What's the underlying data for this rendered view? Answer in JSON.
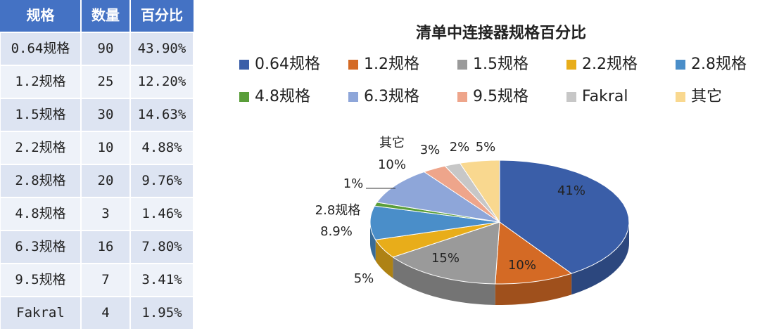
{
  "table": {
    "header": [
      "规格",
      "数量",
      "百分比"
    ],
    "rows": [
      [
        "0.64规格",
        "90",
        "43.90%"
      ],
      [
        "1.2规格",
        "25",
        "12.20%"
      ],
      [
        "1.5规格",
        "30",
        "14.63%"
      ],
      [
        "2.2规格",
        "10",
        "4.88%"
      ],
      [
        "2.8规格",
        "20",
        "9.76%"
      ],
      [
        "4.8规格",
        "3",
        "1.46%"
      ],
      [
        "6.3规格",
        "16",
        "7.80%"
      ],
      [
        "9.5规格",
        "7",
        "3.41%"
      ],
      [
        "Fakral",
        "4",
        "1.95%"
      ]
    ]
  },
  "chart_data": {
    "type": "pie",
    "title": "清单中连接器规格百分比",
    "categories": [
      "0.64规格",
      "1.2规格",
      "1.5规格",
      "2.2规格",
      "2.8规格",
      "4.8规格",
      "6.3规格",
      "9.5规格",
      "Fakral",
      "其它"
    ],
    "values": [
      41,
      10,
      15,
      5,
      8.9,
      1,
      10,
      3,
      2,
      5
    ],
    "value_labels": [
      "41%",
      "10%",
      "15%",
      "5%",
      "8.9%",
      "1%",
      "10%",
      "3%",
      "2%",
      "5%"
    ],
    "colors": [
      "#3a5ea8",
      "#d46a25",
      "#9a9a9a",
      "#e8ad1a",
      "#4a8ec9",
      "#5a9e3a",
      "#8ea6d9",
      "#eea58b",
      "#c7c7c7",
      "#f9d88f"
    ],
    "legend": "top"
  }
}
